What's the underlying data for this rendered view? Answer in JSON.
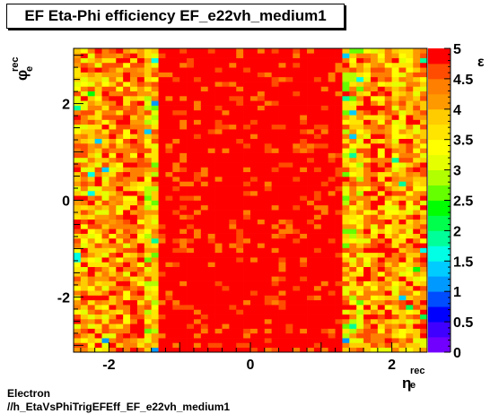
{
  "chart_data": {
    "type": "heatmap",
    "title": "EF Eta-Phi efficiency EF_e22vh_medium1",
    "xlabel": "η_e^rec",
    "ylabel": "φ_e^rec",
    "zlabel": "ε",
    "xlim": [
      -2.5,
      2.5
    ],
    "ylim": [
      -3.14159,
      3.14159
    ],
    "zlim": [
      0,
      5
    ],
    "x_ticks": [
      -2,
      0,
      2
    ],
    "y_ticks": [
      -2,
      0,
      2
    ],
    "z_ticks": [
      0,
      0.5,
      1,
      1.5,
      2,
      2.5,
      3,
      3.5,
      4,
      4.5,
      5
    ],
    "bins_x": 50,
    "bins_y": 64,
    "palette": [
      "#7200ff",
      "#3f00ff",
      "#0000ff",
      "#004cff",
      "#0099ff",
      "#00ccff",
      "#00ffe5",
      "#00ff99",
      "#00ff4c",
      "#00ff00",
      "#66ff00",
      "#b2ff00",
      "#e5ff00",
      "#ffff00",
      "#ffe500",
      "#ffcc00",
      "#ff9900",
      "#ff7f00",
      "#ff4c00",
      "#ff0000"
    ]
  },
  "footer": {
    "line1": "Electron",
    "line2": "//h_EtaVsPhiTrigEFEff_EF_e22vh_medium1"
  }
}
